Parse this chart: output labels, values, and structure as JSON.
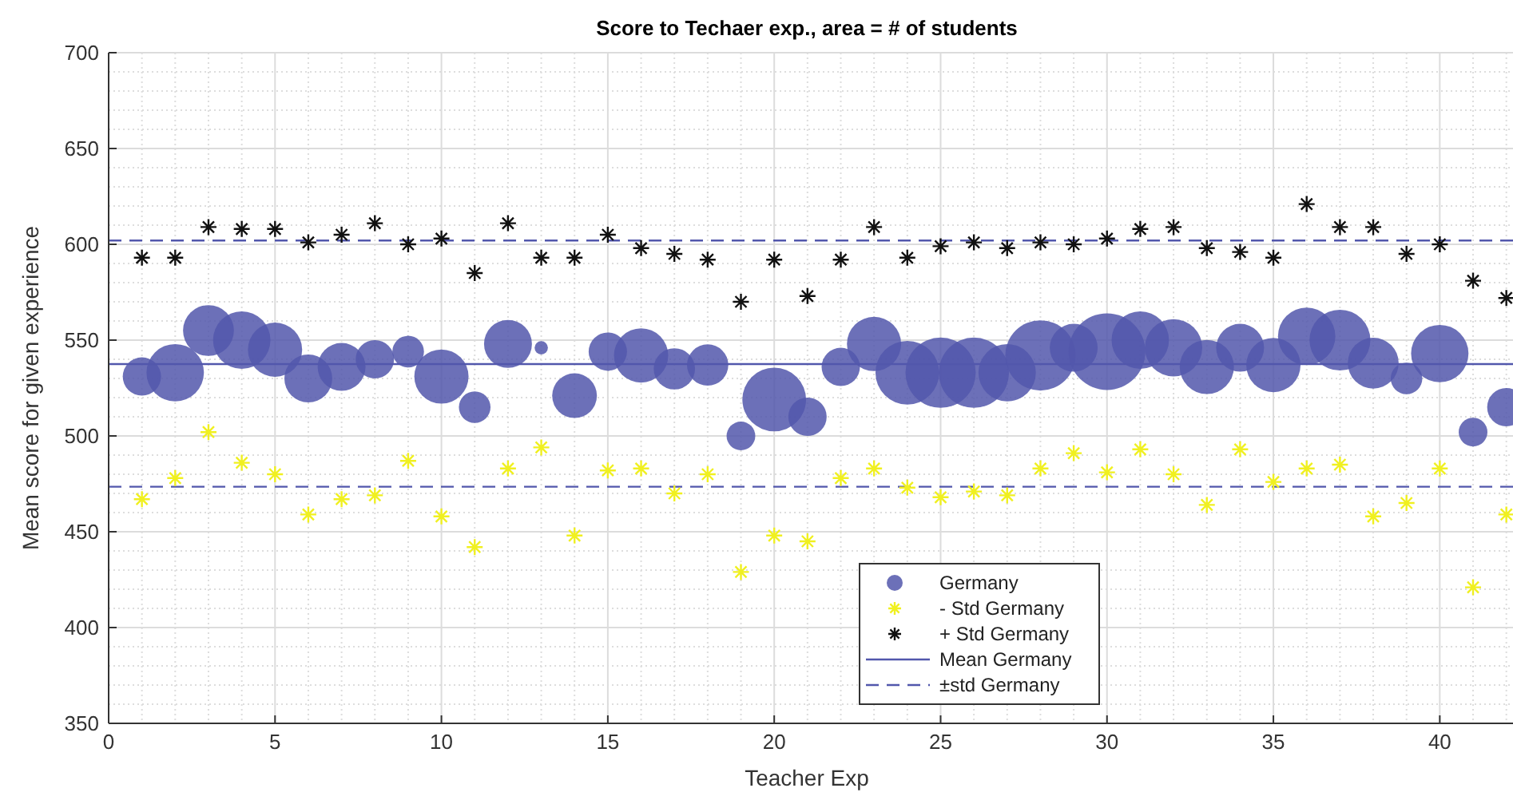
{
  "chart_data": {
    "type": "bubble",
    "title": "Score to Techaer exp., area = # of students",
    "xlabel": "Teacher Exp",
    "ylabel": "Mean score for given experience",
    "x": [
      1,
      2,
      3,
      4,
      5,
      6,
      7,
      8,
      9,
      10,
      11,
      12,
      13,
      14,
      15,
      16,
      17,
      18,
      19,
      20,
      21,
      22,
      23,
      24,
      25,
      26,
      27,
      28,
      29,
      30,
      31,
      32,
      33,
      34,
      35,
      36,
      37,
      38,
      39,
      40,
      41,
      42
    ],
    "xlim": [
      0,
      42.2
    ],
    "xticks": [
      0,
      5,
      10,
      15,
      20,
      25,
      30,
      35,
      40
    ],
    "ylim": [
      350,
      700
    ],
    "yticks": [
      350,
      400,
      450,
      500,
      550,
      600,
      650,
      700
    ],
    "grid": true,
    "legend": "bottom",
    "series": [
      {
        "name": "Germany",
        "color": "#5257ac",
        "marker": "circle",
        "values": [
          531,
          533,
          555,
          550,
          545,
          530,
          536,
          540,
          544,
          531,
          515,
          548,
          546,
          521,
          544,
          542,
          535,
          537,
          500,
          519,
          510,
          536,
          548,
          533,
          533,
          533,
          533,
          542,
          546,
          544,
          550,
          546,
          536,
          546,
          537,
          552,
          550,
          538,
          530,
          543,
          502,
          515
        ],
        "sizes": [
          0.25,
          0.56,
          0.44,
          0.56,
          0.5,
          0.39,
          0.39,
          0.25,
          0.17,
          0.5,
          0.17,
          0.39,
          0.03,
          0.34,
          0.25,
          0.5,
          0.29,
          0.29,
          0.14,
          0.69,
          0.25,
          0.25,
          0.5,
          0.69,
          0.84,
          0.84,
          0.56,
          0.84,
          0.39,
          1,
          0.56,
          0.56,
          0.5,
          0.39,
          0.5,
          0.56,
          0.63,
          0.44,
          0.17,
          0.56,
          0.14,
          0.25
        ]
      },
      {
        "name": "- Std Germany",
        "type": "scatter",
        "color": "#f0f020",
        "marker": "cross",
        "values": [
          467,
          478,
          502,
          486,
          480,
          459,
          467,
          469,
          487,
          458,
          442,
          483,
          494,
          448,
          482,
          483,
          470,
          480,
          429,
          448,
          445,
          478,
          483,
          473,
          468,
          471,
          469,
          483,
          491,
          481,
          493,
          480,
          464,
          493,
          476,
          483,
          485,
          458,
          465,
          483,
          421,
          459
        ]
      },
      {
        "name": "+ Std Germany",
        "type": "scatter",
        "color": "#111111",
        "marker": "cross",
        "values": [
          593,
          593,
          609,
          608,
          608,
          601,
          605,
          611,
          600,
          603,
          585,
          611,
          593,
          593,
          605,
          598,
          595,
          592,
          570,
          592,
          573,
          592,
          609,
          593,
          599,
          601,
          598,
          601,
          600,
          603,
          608,
          609,
          598,
          596,
          593,
          621,
          609,
          609,
          595,
          600,
          581,
          572
        ]
      }
    ],
    "ref_lines": [
      {
        "axis": "y",
        "value": 537.5,
        "label": "Mean Germany",
        "color": "#5257ac",
        "line_style": "solid"
      },
      {
        "axis": "y",
        "value": 602,
        "label": "±std Germany",
        "color": "#5257ac",
        "line_style": "dashed"
      },
      {
        "axis": "y",
        "value": 473.5,
        "color": "#5257ac",
        "line_style": "dashed"
      }
    ]
  }
}
